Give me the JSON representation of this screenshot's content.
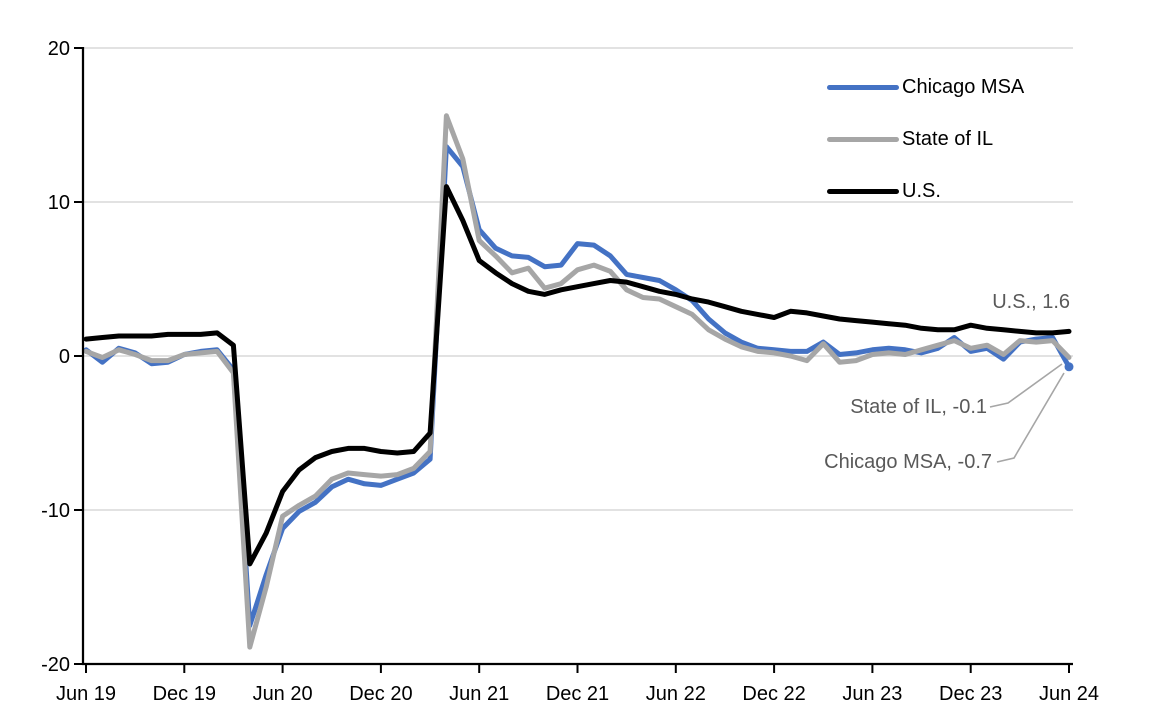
{
  "chart_data": {
    "type": "line",
    "title": "",
    "xlabel": "",
    "ylabel": "",
    "ylim": [
      -20,
      20
    ],
    "grid": true,
    "legend_position": "top-right",
    "y_ticks": [
      20,
      10,
      0,
      -10,
      -20
    ],
    "x_tick_labels": [
      "Jun 19",
      "Dec 19",
      "Jun 20",
      "Dec 20",
      "Jun 21",
      "Dec 21",
      "Jun 22",
      "Dec 22",
      "Jun 23",
      "Dec 23",
      "Jun 24"
    ],
    "x_tick_indices": [
      0,
      6,
      12,
      18,
      24,
      30,
      36,
      42,
      48,
      54,
      60
    ],
    "months": [
      "Jun 19",
      "Jul 19",
      "Aug 19",
      "Sep 19",
      "Oct 19",
      "Nov 19",
      "Dec 19",
      "Jan 20",
      "Feb 20",
      "Mar 20",
      "Apr 20",
      "May 20",
      "Jun 20",
      "Jul 20",
      "Aug 20",
      "Sep 20",
      "Oct 20",
      "Nov 20",
      "Dec 20",
      "Jan 21",
      "Feb 21",
      "Mar 21",
      "Apr 21",
      "May 21",
      "Jun 21",
      "Jul 21",
      "Aug 21",
      "Sep 21",
      "Oct 21",
      "Nov 21",
      "Dec 21",
      "Jan 22",
      "Feb 22",
      "Mar 22",
      "Apr 22",
      "May 22",
      "Jun 22",
      "Jul 22",
      "Aug 22",
      "Sep 22",
      "Oct 22",
      "Nov 22",
      "Dec 22",
      "Jan 23",
      "Feb 23",
      "Mar 23",
      "Apr 23",
      "May 23",
      "Jun 23",
      "Jul 23",
      "Aug 23",
      "Sep 23",
      "Oct 23",
      "Nov 23",
      "Dec 23",
      "Jan 24",
      "Feb 24",
      "Mar 24",
      "Apr 24",
      "May 24",
      "Jun 24"
    ],
    "series": [
      {
        "name": "Chicago MSA",
        "color": "#4472C4",
        "end_label": "Chicago MSA, -0.7",
        "end_value": -0.7,
        "values": [
          0.4,
          -0.4,
          0.5,
          0.2,
          -0.5,
          -0.4,
          0.1,
          0.3,
          0.4,
          -0.9,
          -17.5,
          -14.2,
          -11.2,
          -10.1,
          -9.5,
          -8.5,
          -8.0,
          -8.3,
          -8.4,
          -8.0,
          -7.6,
          -6.7,
          13.6,
          12.3,
          8.2,
          7.0,
          6.5,
          6.4,
          5.8,
          5.9,
          7.3,
          7.2,
          6.5,
          5.3,
          5.1,
          4.9,
          4.3,
          3.6,
          2.4,
          1.5,
          0.9,
          0.5,
          0.4,
          0.3,
          0.3,
          0.9,
          0.1,
          0.2,
          0.4,
          0.5,
          0.4,
          0.2,
          0.5,
          1.2,
          0.3,
          0.5,
          -0.2,
          0.9,
          1.1,
          1.2,
          -0.7
        ]
      },
      {
        "name": "State of IL",
        "color": "#A6A6A6",
        "end_label": "State of IL, -0.1",
        "end_value": -0.1,
        "values": [
          0.3,
          -0.1,
          0.4,
          0.1,
          -0.3,
          -0.3,
          0.1,
          0.2,
          0.3,
          -1.1,
          -18.9,
          -15.0,
          -10.4,
          -9.7,
          -9.1,
          -8.0,
          -7.6,
          -7.7,
          -7.8,
          -7.7,
          -7.3,
          -6.2,
          15.6,
          12.8,
          7.5,
          6.5,
          5.4,
          5.7,
          4.4,
          4.7,
          5.6,
          5.9,
          5.5,
          4.3,
          3.8,
          3.7,
          3.2,
          2.7,
          1.7,
          1.1,
          0.6,
          0.3,
          0.2,
          0.0,
          -0.3,
          0.8,
          -0.4,
          -0.3,
          0.1,
          0.2,
          0.1,
          0.4,
          0.7,
          1.0,
          0.5,
          0.7,
          0.1,
          1.0,
          0.9,
          1.0,
          -0.1
        ]
      },
      {
        "name": "U.S.",
        "color": "#000000",
        "end_label": "U.S., 1.6",
        "end_value": 1.6,
        "values": [
          1.1,
          1.2,
          1.3,
          1.3,
          1.3,
          1.4,
          1.4,
          1.4,
          1.5,
          0.7,
          -13.5,
          -11.5,
          -8.8,
          -7.4,
          -6.6,
          -6.2,
          -6.0,
          -6.0,
          -6.2,
          -6.3,
          -6.2,
          -5.0,
          11.0,
          8.8,
          6.2,
          5.4,
          4.7,
          4.2,
          4.0,
          4.3,
          4.5,
          4.7,
          4.9,
          4.8,
          4.5,
          4.2,
          4.0,
          3.7,
          3.5,
          3.2,
          2.9,
          2.7,
          2.5,
          2.9,
          2.8,
          2.6,
          2.4,
          2.3,
          2.2,
          2.1,
          2.0,
          1.8,
          1.7,
          1.7,
          2.0,
          1.8,
          1.7,
          1.6,
          1.5,
          1.5,
          1.6
        ]
      }
    ],
    "annotations": [
      {
        "text": "U.S., 1.6"
      },
      {
        "text": "State of IL, -0.1"
      },
      {
        "text": "Chicago MSA, -0.7"
      }
    ]
  },
  "colors": {
    "axis": "#000000",
    "gridline": "#D9D9D9",
    "leader_line": "#A6A6A6",
    "annotation_text": "#595959",
    "background": "#FFFFFF"
  }
}
